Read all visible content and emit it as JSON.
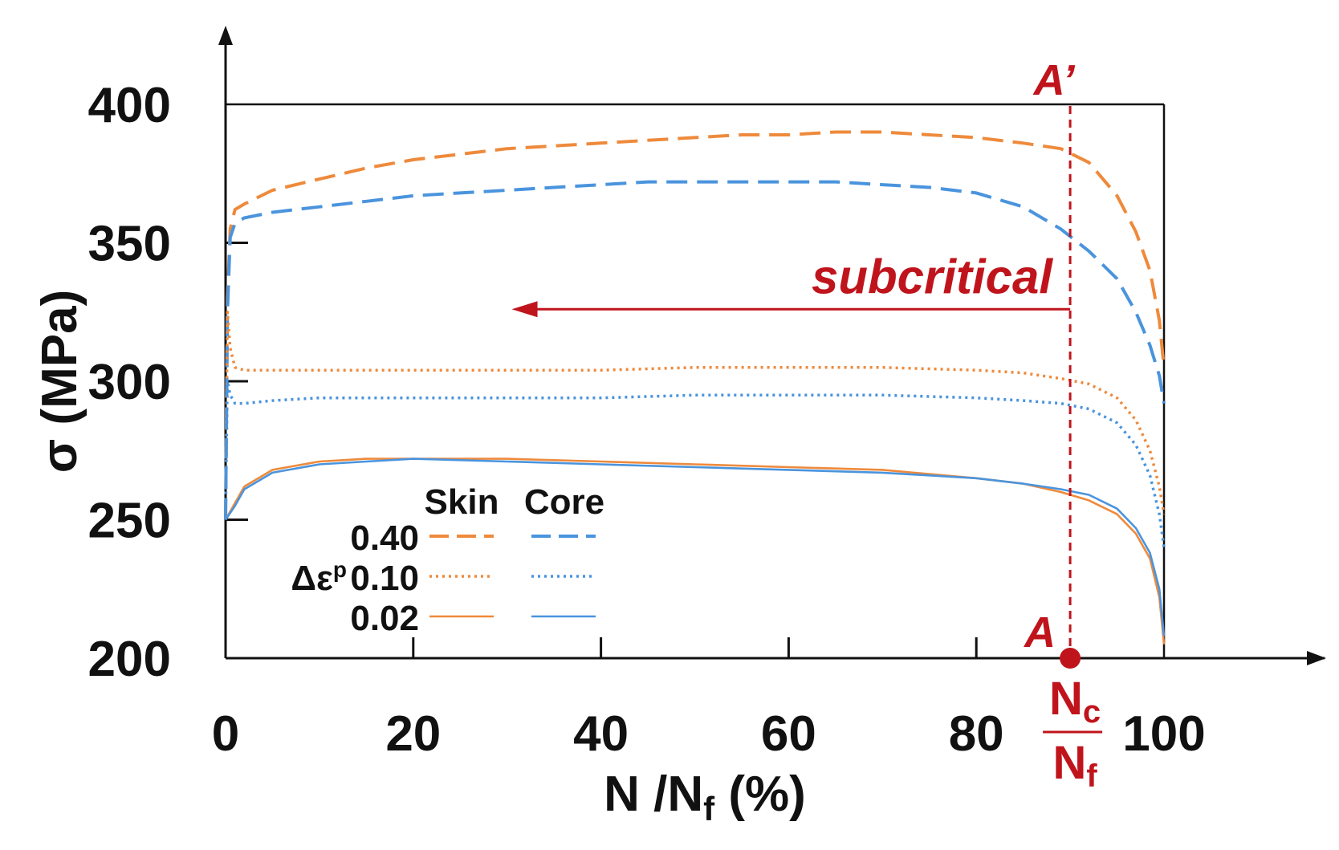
{
  "chart_data": {
    "type": "line",
    "xlabel": "N /N",
    "xlabel_sub": "f",
    "xlabel_suffix": " (%)",
    "ylabel": "σ (MPa)",
    "xlim": [
      0,
      100
    ],
    "ylim": [
      200,
      400
    ],
    "x_ticks": [
      0,
      20,
      40,
      60,
      80,
      100
    ],
    "y_ticks": [
      200,
      250,
      300,
      350,
      400
    ],
    "grid": false,
    "legend": {
      "position": "bottom-left",
      "col_headers": [
        "Skin",
        "Core"
      ],
      "row_labels": [
        "0.40",
        "0.10",
        "0.02"
      ],
      "symbol": "Δε",
      "symbol_sup": "p"
    },
    "colors": {
      "skin": "#ee8a3c",
      "core": "#4a94dd",
      "annotation": "#c0141c"
    },
    "series": [
      {
        "name": "Skin 0.40",
        "group": "skin",
        "strain": "0.40",
        "style": "dashed",
        "x": [
          0,
          0.2,
          0.5,
          1,
          2,
          5,
          10,
          15,
          20,
          25,
          30,
          35,
          40,
          45,
          50,
          55,
          60,
          65,
          70,
          75,
          80,
          85,
          89,
          92,
          95,
          97,
          98.5,
          99.5,
          100
        ],
        "y": [
          250,
          330,
          355,
          362,
          364,
          369,
          373,
          377,
          380,
          382,
          384,
          385,
          386,
          387,
          388,
          389,
          389,
          390,
          390,
          389,
          388,
          386,
          384,
          379,
          367,
          354,
          340,
          322,
          305
        ]
      },
      {
        "name": "Core 0.40",
        "group": "core",
        "strain": "0.40",
        "style": "dashed",
        "x": [
          0,
          0.2,
          0.5,
          1,
          2,
          5,
          10,
          15,
          20,
          25,
          30,
          35,
          40,
          45,
          50,
          55,
          60,
          65,
          70,
          75,
          80,
          85,
          89,
          92,
          95,
          97,
          98.5,
          99.5,
          100
        ],
        "y": [
          250,
          325,
          352,
          357,
          359,
          361,
          363,
          365,
          367,
          368,
          369,
          370,
          371,
          372,
          372,
          372,
          372,
          372,
          371,
          370,
          368,
          363,
          355,
          347,
          337,
          325,
          313,
          302,
          292
        ]
      },
      {
        "name": "Skin 0.10",
        "group": "skin",
        "strain": "0.10",
        "style": "dotted",
        "x": [
          0,
          0.2,
          0.5,
          1,
          2,
          5,
          10,
          20,
          30,
          40,
          50,
          60,
          70,
          80,
          85,
          89,
          92,
          95,
          97,
          98.5,
          99.5,
          100
        ],
        "y": [
          250,
          325,
          312,
          305,
          304,
          304,
          304,
          304,
          304,
          304,
          305,
          305,
          305,
          304,
          303,
          301,
          299,
          294,
          286,
          275,
          262,
          252
        ]
      },
      {
        "name": "Core 0.10",
        "group": "core",
        "strain": "0.10",
        "style": "dotted",
        "x": [
          0,
          0.2,
          0.5,
          1,
          2,
          5,
          10,
          20,
          30,
          40,
          50,
          60,
          70,
          80,
          85,
          89,
          92,
          95,
          97,
          98.5,
          99.5,
          100
        ],
        "y": [
          250,
          300,
          295,
          292,
          292,
          293,
          294,
          294,
          294,
          294,
          295,
          295,
          295,
          294,
          293,
          292,
          290,
          285,
          277,
          266,
          252,
          240
        ]
      },
      {
        "name": "Skin 0.02",
        "group": "skin",
        "strain": "0.02",
        "style": "solid",
        "x": [
          0,
          1,
          2,
          5,
          10,
          15,
          20,
          30,
          40,
          50,
          60,
          70,
          80,
          85,
          89,
          92,
          95,
          97,
          98.5,
          99.5,
          100
        ],
        "y": [
          250,
          256,
          262,
          268,
          271,
          272,
          272,
          272,
          271,
          270,
          269,
          268,
          265,
          263,
          260,
          257,
          252,
          245,
          236,
          222,
          205
        ]
      },
      {
        "name": "Core 0.02",
        "group": "core",
        "strain": "0.02",
        "style": "solid",
        "x": [
          0,
          1,
          2,
          5,
          10,
          15,
          20,
          30,
          40,
          50,
          60,
          70,
          80,
          85,
          89,
          92,
          95,
          97,
          98.5,
          99.5,
          100
        ],
        "y": [
          250,
          255,
          261,
          267,
          270,
          271,
          272,
          271,
          270,
          269,
          268,
          267,
          265,
          263,
          261,
          259,
          254,
          247,
          238,
          225,
          208
        ]
      }
    ],
    "annotations": {
      "nc_x": 90,
      "arrow_from_x": 90,
      "arrow_to_x": 30.5,
      "arrow_y": 326,
      "subcritical_label": "subcritical",
      "top_label": "A’",
      "bottom_label": "A",
      "nc_numerator": "N",
      "nc_numerator_sub": "c",
      "nc_denominator": "N",
      "nc_denominator_sub": "f"
    }
  }
}
